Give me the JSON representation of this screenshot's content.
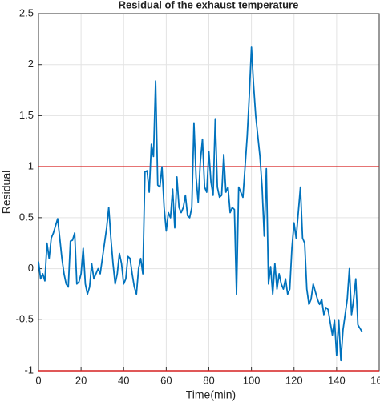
{
  "chart_data": {
    "type": "line",
    "title": "Residual of the exhaust temperature",
    "x_label": "Time(min)",
    "y_label": "Residual",
    "x": [
      0,
      1,
      2,
      3,
      4,
      5,
      6,
      7,
      8,
      9,
      10,
      11,
      12,
      13,
      14,
      15,
      16,
      17,
      18,
      19,
      20,
      21,
      22,
      23,
      24,
      25,
      26,
      27,
      28,
      29,
      30,
      31,
      32,
      33,
      34,
      35,
      36,
      37,
      38,
      39,
      40,
      41,
      42,
      43,
      44,
      45,
      46,
      47,
      48,
      49,
      50,
      51,
      52,
      53,
      54,
      55,
      56,
      57,
      58,
      59,
      60,
      61,
      62,
      63,
      64,
      65,
      66,
      67,
      68,
      69,
      70,
      71,
      72,
      73,
      74,
      75,
      76,
      77,
      78,
      79,
      80,
      81,
      82,
      83,
      84,
      85,
      86,
      87,
      88,
      89,
      90,
      91,
      92,
      93,
      94,
      95,
      96,
      97,
      98,
      99,
      100,
      101,
      102,
      103,
      104,
      105,
      106,
      107,
      108,
      109,
      110,
      111,
      112,
      113,
      114,
      115,
      116,
      117,
      118,
      119,
      120,
      121,
      123,
      124,
      125,
      126,
      127,
      128,
      129,
      131,
      132,
      133,
      134,
      135,
      136,
      138,
      139,
      140,
      141,
      142,
      143,
      145,
      146,
      147,
      148,
      149,
      150,
      152
    ],
    "series": [
      {
        "name": "Residual",
        "color": "#0072bd",
        "values": [
          0.07,
          -0.1,
          -0.05,
          -0.12,
          0.25,
          0.1,
          0.3,
          0.35,
          0.42,
          0.49,
          0.3,
          0.1,
          -0.05,
          -0.15,
          -0.18,
          0.27,
          0.28,
          0.35,
          -0.15,
          -0.13,
          -0.05,
          0.2,
          -0.15,
          -0.25,
          -0.18,
          0.05,
          -0.1,
          -0.05,
          0.0,
          -0.05,
          0.1,
          0.25,
          0.4,
          0.6,
          0.3,
          0.05,
          -0.15,
          -0.05,
          0.15,
          0.05,
          -0.15,
          -0.1,
          0.12,
          0.1,
          -0.05,
          -0.18,
          -0.25,
          0.0,
          0.1,
          -0.05,
          0.95,
          0.96,
          0.75,
          1.22,
          1.1,
          1.84,
          0.82,
          0.8,
          1.0,
          0.6,
          0.37,
          0.55,
          0.5,
          0.78,
          0.4,
          0.9,
          0.6,
          0.55,
          0.6,
          0.72,
          0.52,
          0.5,
          0.6,
          1.43,
          0.9,
          0.65,
          1.05,
          1.27,
          0.8,
          0.75,
          1.15,
          0.85,
          0.72,
          1.47,
          0.8,
          0.7,
          0.72,
          1.12,
          0.75,
          0.8,
          0.55,
          0.6,
          0.58,
          -0.25,
          0.8,
          0.75,
          0.7,
          1.0,
          1.3,
          1.7,
          2.17,
          1.8,
          1.5,
          1.3,
          1.1,
          0.8,
          0.32,
          0.98,
          -0.15,
          0.02,
          -0.25,
          0.05,
          -0.2,
          -0.05,
          -0.15,
          -0.2,
          -0.1,
          -0.25,
          -0.2,
          0.2,
          0.45,
          0.3,
          0.8,
          0.3,
          0.25,
          -0.2,
          -0.35,
          -0.3,
          -0.15,
          -0.3,
          -0.35,
          -0.3,
          -0.45,
          -0.38,
          -0.4,
          -0.65,
          -0.5,
          -0.85,
          -0.5,
          -0.9,
          -0.6,
          -0.3,
          0.0,
          -0.45,
          -0.3,
          -0.1,
          -0.55,
          -0.62
        ]
      }
    ],
    "threshold_lines": [
      1,
      -1
    ],
    "threshold_color": "#d62020",
    "xlim": [
      0,
      160
    ],
    "xticks": [
      0,
      20,
      40,
      60,
      80,
      100,
      120,
      140,
      160
    ],
    "ylim": [
      -1,
      2.5
    ],
    "yticks": [
      -1,
      -0.5,
      0,
      0.5,
      1,
      1.5,
      2,
      2.5
    ],
    "grid": true
  }
}
